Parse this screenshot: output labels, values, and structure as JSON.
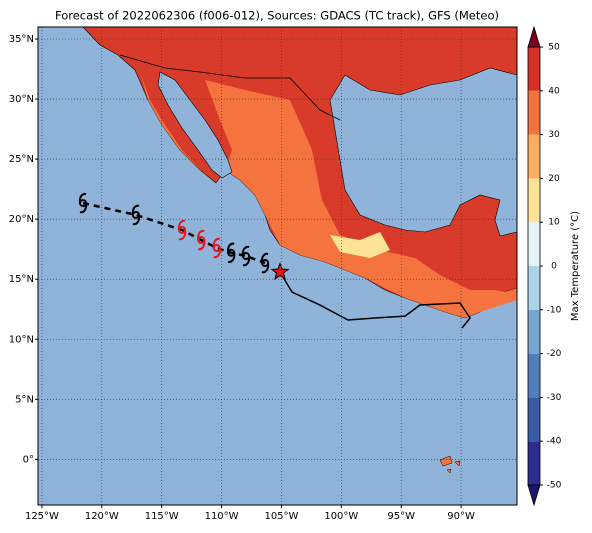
{
  "map": {
    "title": "Forecast of 2022062306 (f006-012), Sources: GDACS (TC track), GFS (Meteo)",
    "lonlim": [
      -125.33,
      -85.33
    ],
    "latlim": [
      -3.8,
      36
    ],
    "lon_ticks": [
      {
        "value": -125,
        "label": "125°W"
      },
      {
        "value": -120,
        "label": "120°W"
      },
      {
        "value": -115,
        "label": "115°W"
      },
      {
        "value": -110,
        "label": "110°W"
      },
      {
        "value": -105,
        "label": "105°W"
      },
      {
        "value": -100,
        "label": "100°W"
      },
      {
        "value": -95,
        "label": "95°W"
      },
      {
        "value": -90,
        "label": "90°W"
      }
    ],
    "lat_ticks": [
      {
        "value": 0,
        "label": "0°"
      },
      {
        "value": 5,
        "label": "5°N"
      },
      {
        "value": 10,
        "label": "10°N"
      },
      {
        "value": 15,
        "label": "15°N"
      },
      {
        "value": 20,
        "label": "20°N"
      },
      {
        "value": 25,
        "label": "25°N"
      },
      {
        "value": 30,
        "label": "30°N"
      },
      {
        "value": 35,
        "label": "35°N"
      }
    ],
    "grid": true,
    "ocean_color": "#8fb3d9",
    "colorbar": {
      "label": "Max Temperature (°C)",
      "ticks": [
        -50,
        -40,
        -30,
        -20,
        -10,
        0,
        10,
        20,
        30,
        40,
        50
      ],
      "colors": [
        "#2c2d8e",
        "#3a5aa6",
        "#4f7fb9",
        "#74a8cf",
        "#acd3e6",
        "#e3f3f8",
        "#fde395",
        "#fdae61",
        "#f4733f",
        "#d73027",
        "#a50026"
      ],
      "extend_low_color": "#1b1670",
      "extend_high_color": "#7a0021"
    },
    "current_position": {
      "lon": -105.12,
      "lat": 15.6,
      "color": "#e8141b"
    },
    "past_track": {
      "lon": [
        -105.12,
        -104.12,
        -101.78,
        -99.44,
        -97.19,
        -94.68,
        -93.43,
        -90.09,
        -89.25,
        -89.92
      ],
      "lat": [
        15.6,
        13.93,
        12.85,
        11.6,
        11.77,
        11.93,
        12.85,
        13.02,
        11.77,
        10.94
      ]
    },
    "forecast_track": {
      "lon": [
        -121.57,
        -117.15,
        -113.3,
        -111.7,
        -110.4,
        -109.2,
        -107.96,
        -106.37
      ],
      "lat": [
        21.34,
        20.35,
        19.1,
        18.26,
        17.6,
        17.2,
        16.93,
        16.35
      ],
      "colors": [
        "#000000",
        "#000000",
        "#e8141b",
        "#e8141b",
        "#e8141b",
        "#000000",
        "#000000",
        "#000000"
      ]
    }
  }
}
